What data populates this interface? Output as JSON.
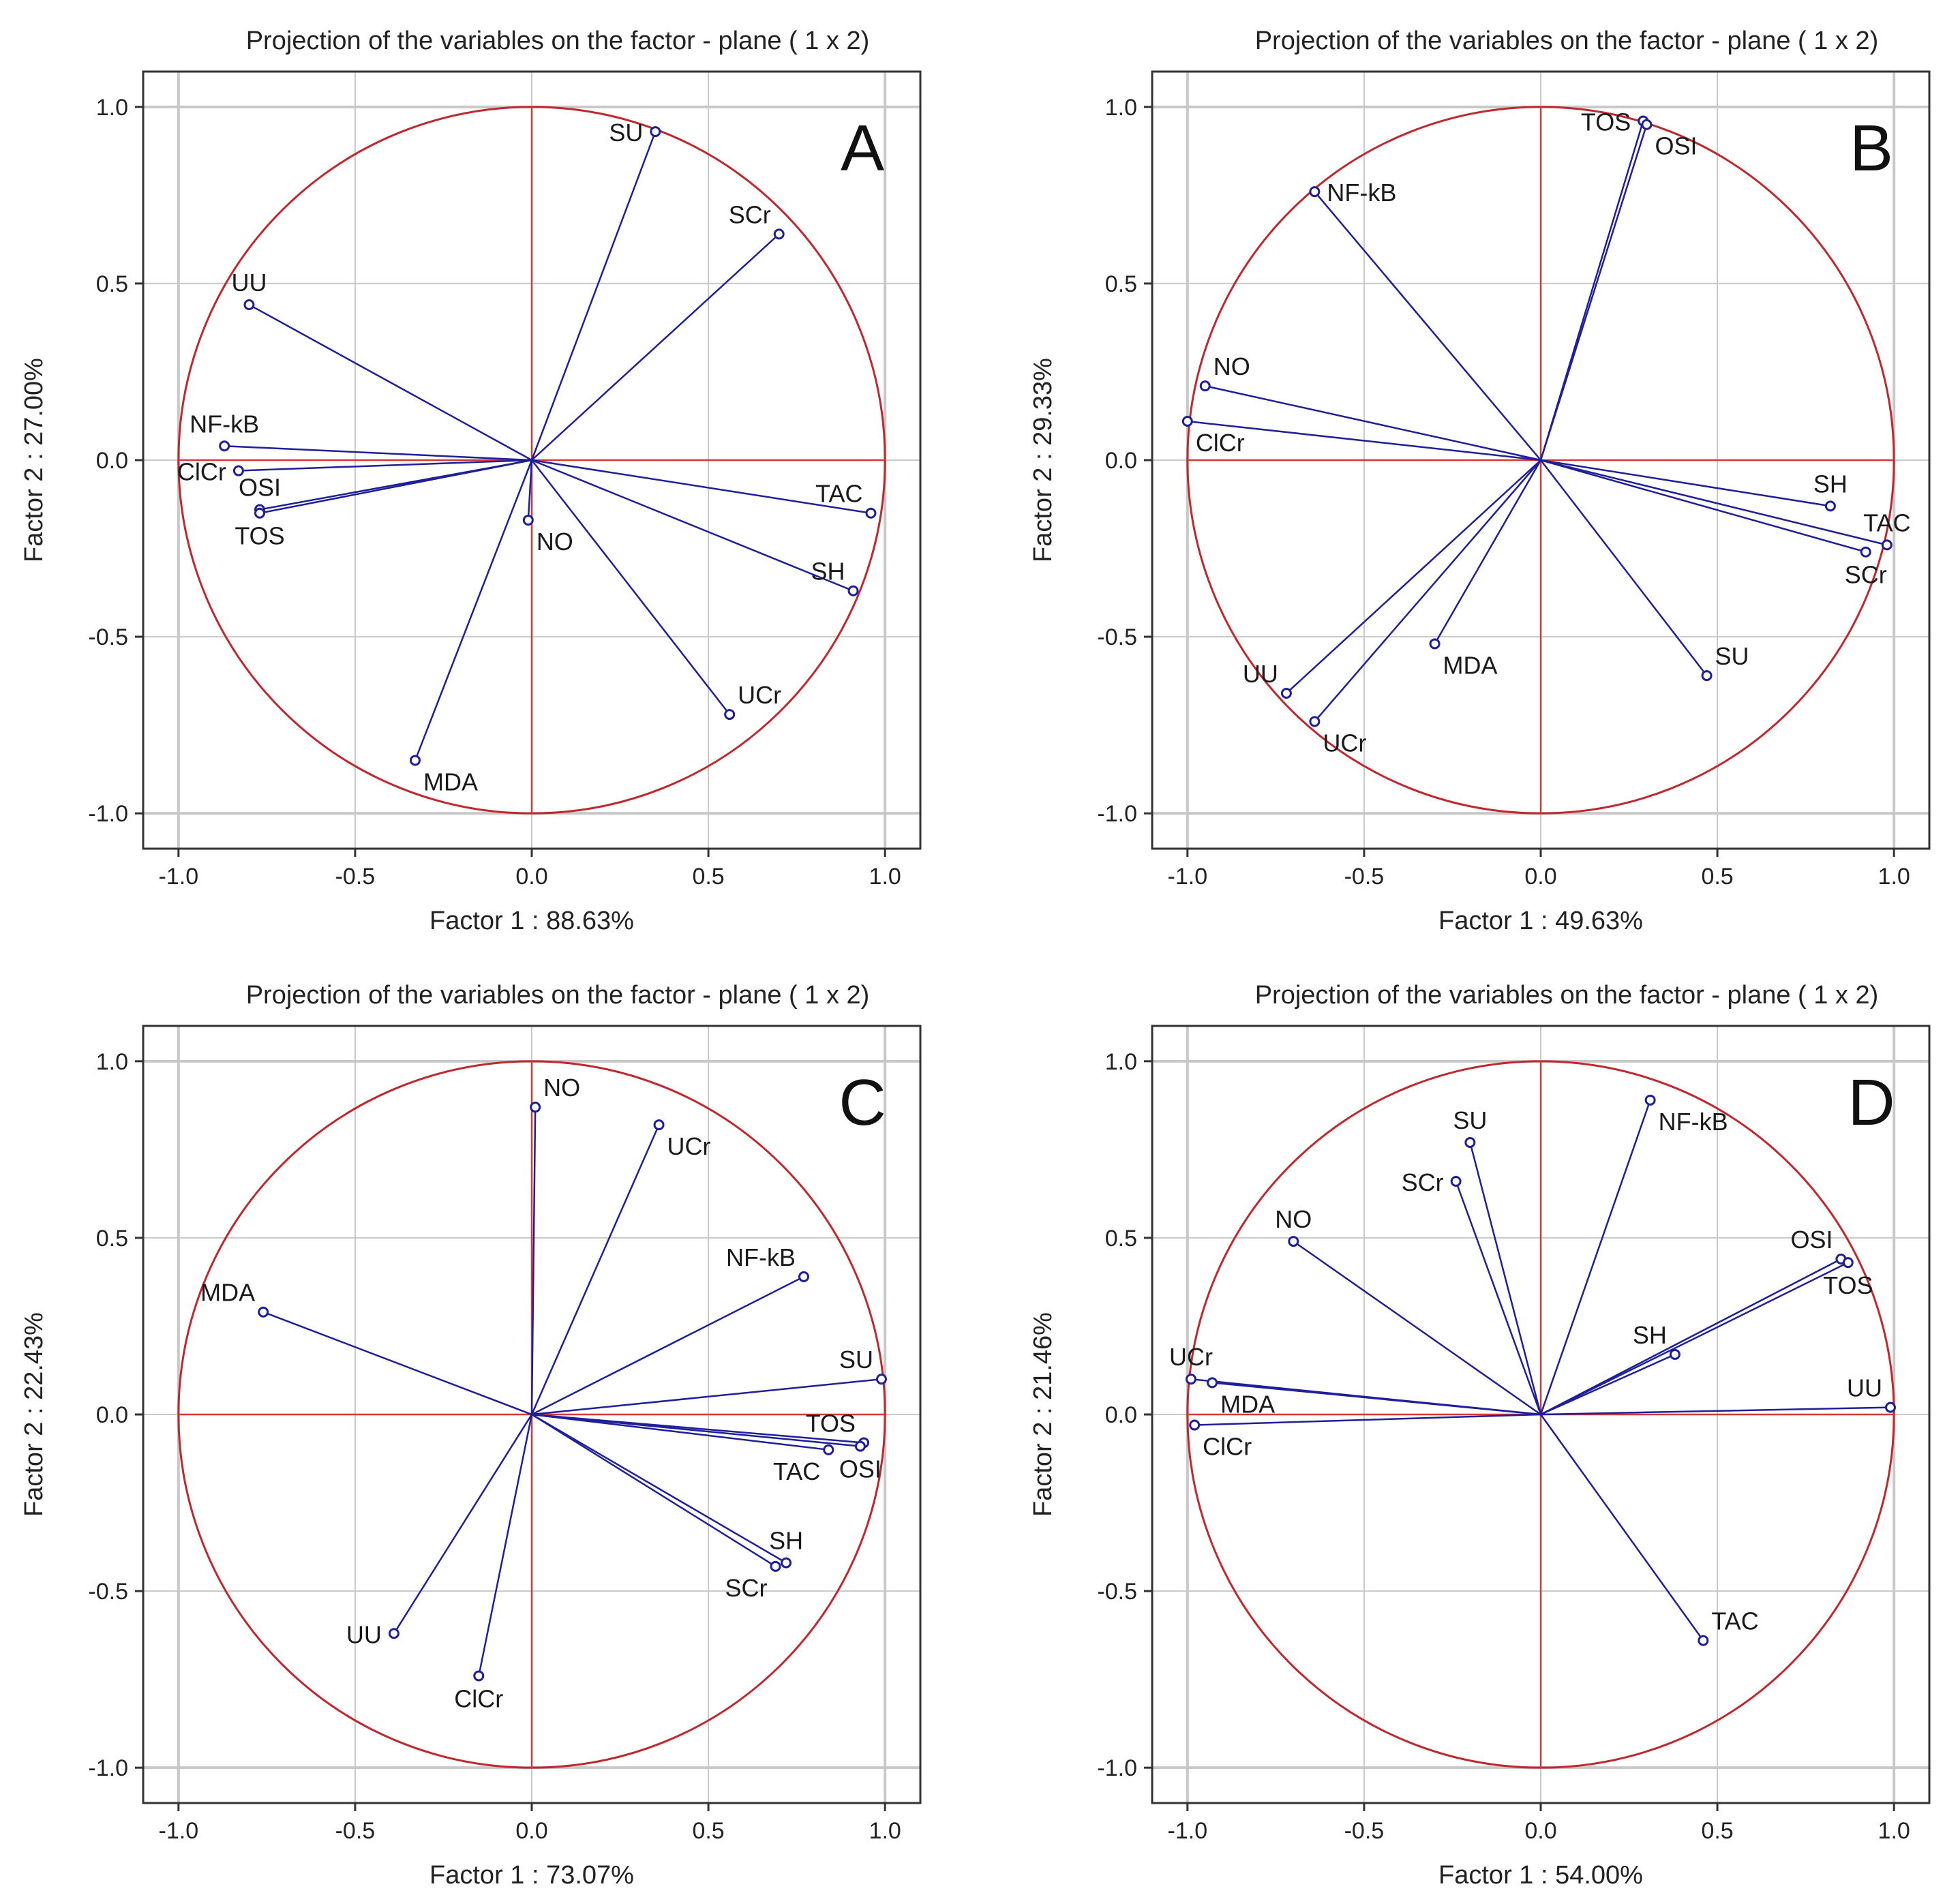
{
  "chart_data": [
    {
      "type": "scatter",
      "panel": "A",
      "title": "Projection of the variables on the factor - plane (  1 x  2)",
      "xlabel": "Factor 1 : 88.63%",
      "ylabel": "Factor 2 : 27.00%",
      "xlim": [
        -1.1,
        1.1
      ],
      "ylim": [
        -1.1,
        1.1
      ],
      "xticks": [
        "-1.0",
        "-0.5",
        "0.0",
        "0.5",
        "1.0"
      ],
      "yticks": [
        "1.0",
        "0.5",
        "0.0",
        "-0.5",
        "-1.0"
      ],
      "grid": true,
      "unit_circle": true,
      "points": [
        {
          "name": "SU",
          "x": 0.35,
          "y": 0.93,
          "label_pos": "left"
        },
        {
          "name": "SCr",
          "x": 0.7,
          "y": 0.64,
          "label_pos": "up-left"
        },
        {
          "name": "UU",
          "x": -0.8,
          "y": 0.44,
          "label_pos": "up"
        },
        {
          "name": "NF-kB",
          "x": -0.87,
          "y": 0.04,
          "label_pos": "up"
        },
        {
          "name": "ClCr",
          "x": -0.83,
          "y": -0.03,
          "label_pos": "left"
        },
        {
          "name": "OSI",
          "x": -0.77,
          "y": -0.14,
          "label_pos": "up"
        },
        {
          "name": "TOS",
          "x": -0.77,
          "y": -0.15,
          "label_pos": "down"
        },
        {
          "name": "NO",
          "x": -0.01,
          "y": -0.17,
          "label_pos": "down-right"
        },
        {
          "name": "TAC",
          "x": 0.96,
          "y": -0.15,
          "label_pos": "up-left"
        },
        {
          "name": "SH",
          "x": 0.91,
          "y": -0.37,
          "label_pos": "up-left"
        },
        {
          "name": "UCr",
          "x": 0.56,
          "y": -0.72,
          "label_pos": "up-right"
        },
        {
          "name": "MDA",
          "x": -0.33,
          "y": -0.85,
          "label_pos": "down-right"
        }
      ]
    },
    {
      "type": "scatter",
      "panel": "B",
      "title": "Projection of the variables on the factor - plane (  1 x  2)",
      "xlabel": "Factor 1 : 49.63%",
      "ylabel": "Factor 2 : 29.33%",
      "xlim": [
        -1.1,
        1.1
      ],
      "ylim": [
        -1.1,
        1.1
      ],
      "xticks": [
        "-1.0",
        "-0.5",
        "0.0",
        "0.5",
        "1.0"
      ],
      "yticks": [
        "1.0",
        "0.5",
        "0.0",
        "-0.5",
        "-1.0"
      ],
      "grid": true,
      "unit_circle": true,
      "points": [
        {
          "name": "TOS",
          "x": 0.29,
          "y": 0.96,
          "label_pos": "left"
        },
        {
          "name": "OSI",
          "x": 0.3,
          "y": 0.95,
          "label_pos": "down-right"
        },
        {
          "name": "NF-kB",
          "x": -0.64,
          "y": 0.76,
          "label_pos": "right"
        },
        {
          "name": "NO",
          "x": -0.95,
          "y": 0.21,
          "label_pos": "up-right"
        },
        {
          "name": "ClCr",
          "x": -1.0,
          "y": 0.11,
          "label_pos": "down-right"
        },
        {
          "name": "SH",
          "x": 0.82,
          "y": -0.13,
          "label_pos": "up"
        },
        {
          "name": "TAC",
          "x": 0.98,
          "y": -0.24,
          "label_pos": "up"
        },
        {
          "name": "SCr",
          "x": 0.92,
          "y": -0.26,
          "label_pos": "down"
        },
        {
          "name": "MDA",
          "x": -0.3,
          "y": -0.52,
          "label_pos": "down-right"
        },
        {
          "name": "SU",
          "x": 0.47,
          "y": -0.61,
          "label_pos": "up-right"
        },
        {
          "name": "UU",
          "x": -0.72,
          "y": -0.66,
          "label_pos": "up-left"
        },
        {
          "name": "UCr",
          "x": -0.64,
          "y": -0.74,
          "label_pos": "down-right"
        }
      ]
    },
    {
      "type": "scatter",
      "panel": "C",
      "title": "Projection of the variables on the factor - plane (  1 x  2)",
      "xlabel": "Factor 1 : 73.07%",
      "ylabel": "Factor 2 : 22.43%",
      "xlim": [
        -1.1,
        1.1
      ],
      "ylim": [
        -1.1,
        1.1
      ],
      "xticks": [
        "-1.0",
        "-0.5",
        "0.0",
        "0.5",
        "1.0"
      ],
      "yticks": [
        "1.0",
        "0.5",
        "0.0",
        "-0.5",
        "-1.0"
      ],
      "grid": true,
      "unit_circle": true,
      "points": [
        {
          "name": "NO",
          "x": 0.01,
          "y": 0.87,
          "label_pos": "up-right"
        },
        {
          "name": "UCr",
          "x": 0.36,
          "y": 0.82,
          "label_pos": "down-right"
        },
        {
          "name": "NF-kB",
          "x": 0.77,
          "y": 0.39,
          "label_pos": "up-left"
        },
        {
          "name": "MDA",
          "x": -0.76,
          "y": 0.29,
          "label_pos": "up-left"
        },
        {
          "name": "SU",
          "x": 0.99,
          "y": 0.1,
          "label_pos": "up-left"
        },
        {
          "name": "TOS",
          "x": 0.94,
          "y": -0.08,
          "label_pos": "up-left"
        },
        {
          "name": "OSI",
          "x": 0.93,
          "y": -0.09,
          "label_pos": "down"
        },
        {
          "name": "TAC",
          "x": 0.84,
          "y": -0.1,
          "label_pos": "down-left"
        },
        {
          "name": "SH",
          "x": 0.72,
          "y": -0.42,
          "label_pos": "up"
        },
        {
          "name": "SCr",
          "x": 0.69,
          "y": -0.43,
          "label_pos": "down-left"
        },
        {
          "name": "UU",
          "x": -0.39,
          "y": -0.62,
          "label_pos": "left"
        },
        {
          "name": "ClCr",
          "x": -0.15,
          "y": -0.74,
          "label_pos": "down"
        }
      ]
    },
    {
      "type": "scatter",
      "panel": "D",
      "title": "Projection of the variables on the factor - plane (  1 x  2)",
      "xlabel": "Factor 1 : 54.00%",
      "ylabel": "Factor 2 : 21.46%",
      "xlim": [
        -1.1,
        1.1
      ],
      "ylim": [
        -1.1,
        1.1
      ],
      "xticks": [
        "-1.0",
        "-0.5",
        "0.0",
        "0.5",
        "1.0"
      ],
      "yticks": [
        "1.0",
        "0.5",
        "0.0",
        "-0.5",
        "-1.0"
      ],
      "grid": true,
      "unit_circle": true,
      "points": [
        {
          "name": "NF-kB",
          "x": 0.31,
          "y": 0.89,
          "label_pos": "down-right"
        },
        {
          "name": "SU",
          "x": -0.2,
          "y": 0.77,
          "label_pos": "up"
        },
        {
          "name": "SCr",
          "x": -0.24,
          "y": 0.66,
          "label_pos": "left"
        },
        {
          "name": "NO",
          "x": -0.7,
          "y": 0.49,
          "label_pos": "up"
        },
        {
          "name": "OSI",
          "x": 0.85,
          "y": 0.44,
          "label_pos": "up-left"
        },
        {
          "name": "TOS",
          "x": 0.87,
          "y": 0.43,
          "label_pos": "down"
        },
        {
          "name": "SH",
          "x": 0.38,
          "y": 0.17,
          "label_pos": "up-left"
        },
        {
          "name": "UCr",
          "x": -0.99,
          "y": 0.1,
          "label_pos": "up"
        },
        {
          "name": "MDA",
          "x": -0.93,
          "y": 0.09,
          "label_pos": "down-right"
        },
        {
          "name": "UU",
          "x": 0.99,
          "y": 0.02,
          "label_pos": "up-left"
        },
        {
          "name": "ClCr",
          "x": -0.98,
          "y": -0.03,
          "label_pos": "down-right"
        },
        {
          "name": "TAC",
          "x": 0.46,
          "y": -0.64,
          "label_pos": "up-right"
        }
      ]
    }
  ],
  "colors": {
    "vector": "#1f1f9a",
    "point": "#1f1f9a",
    "circle": "#c0282d",
    "zero_axis": "#d23a3a",
    "grid": "#c8c8c8",
    "frame": "#333333",
    "text": "#222222"
  }
}
